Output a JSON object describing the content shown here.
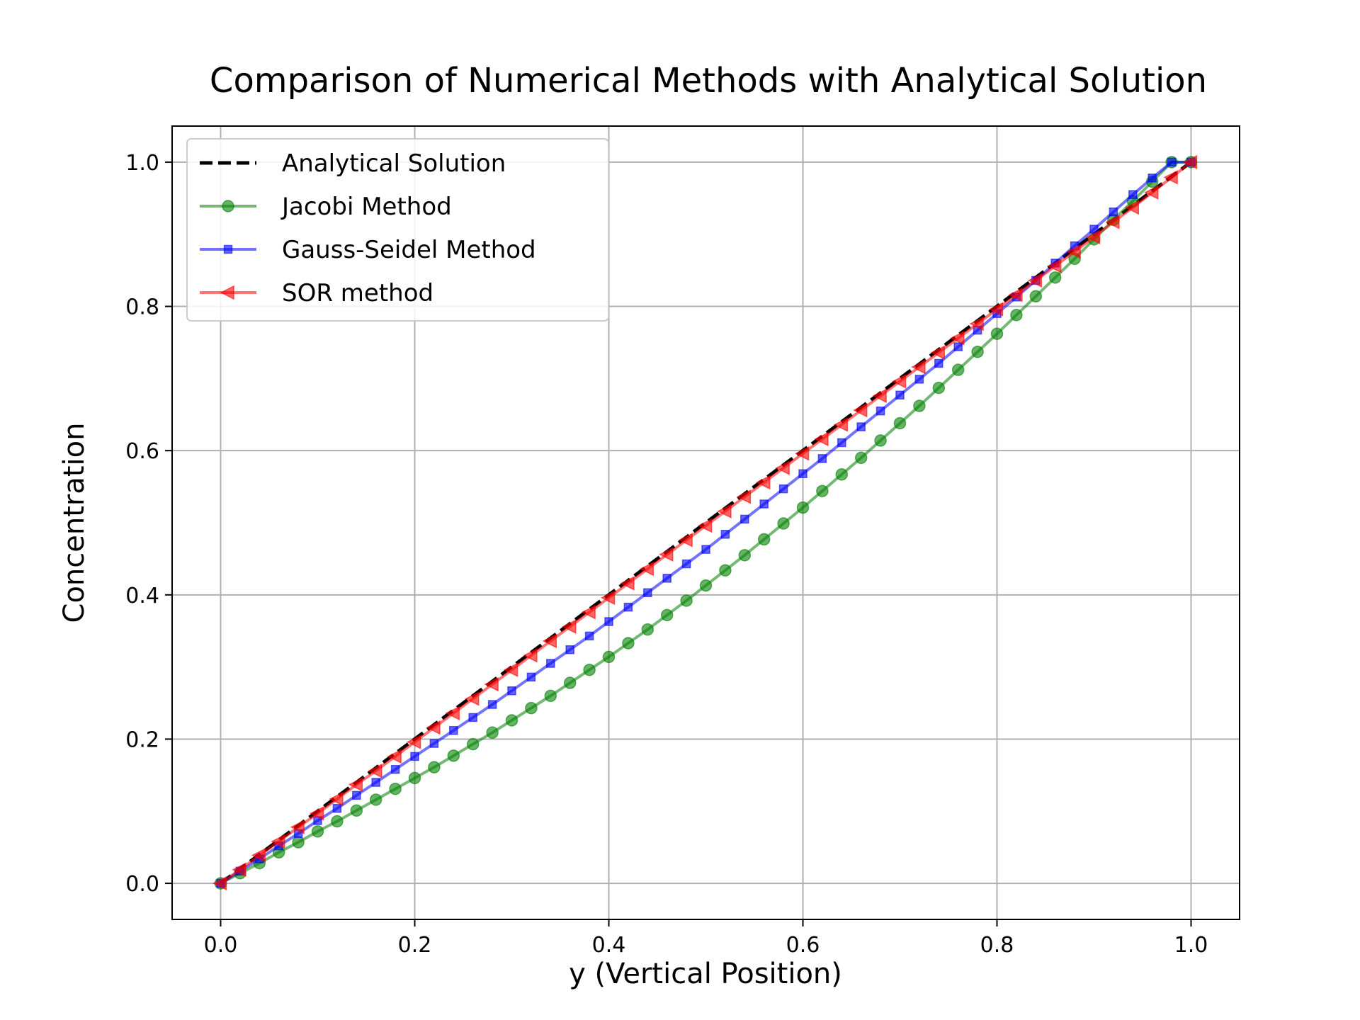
{
  "chart_data": {
    "type": "line",
    "title": "Comparison of Numerical Methods with Analytical Solution",
    "xlabel": "y (Vertical Position)",
    "ylabel": "Concentration",
    "xlim": [
      -0.05,
      1.05
    ],
    "ylim": [
      -0.05,
      1.05
    ],
    "xticks": [
      "0.0",
      "0.2",
      "0.4",
      "0.6",
      "0.8",
      "1.0"
    ],
    "yticks": [
      "0.0",
      "0.2",
      "0.4",
      "0.6",
      "0.8",
      "1.0"
    ],
    "grid": true,
    "legend_position": "top-left",
    "points": 51,
    "series": [
      {
        "name": "Analytical Solution",
        "color": "#000000",
        "style": "dashed",
        "marker": "none",
        "x": [
          0.0,
          1.0
        ],
        "y": [
          0.0,
          1.0
        ]
      },
      {
        "name": "Jacobi Method",
        "color": "#008000",
        "style": "solid",
        "marker": "circle",
        "x": [
          0.0,
          0.02,
          0.04,
          0.06,
          0.08,
          0.1,
          0.12,
          0.14,
          0.16,
          0.18,
          0.2,
          0.22,
          0.24,
          0.26,
          0.28,
          0.3,
          0.32,
          0.34,
          0.36,
          0.38,
          0.4,
          0.42,
          0.44,
          0.46,
          0.48,
          0.5,
          0.52,
          0.54,
          0.56,
          0.58,
          0.6,
          0.62,
          0.64,
          0.66,
          0.68,
          0.7,
          0.72,
          0.74,
          0.76,
          0.78,
          0.8,
          0.82,
          0.84,
          0.86,
          0.88,
          0.9,
          0.92,
          0.94,
          0.96,
          0.98,
          1.0
        ],
        "y": [
          0.0,
          0.014,
          0.028,
          0.043,
          0.057,
          0.072,
          0.086,
          0.101,
          0.116,
          0.131,
          0.146,
          0.161,
          0.177,
          0.193,
          0.209,
          0.226,
          0.243,
          0.26,
          0.278,
          0.296,
          0.314,
          0.333,
          0.352,
          0.372,
          0.392,
          0.413,
          0.434,
          0.455,
          0.477,
          0.499,
          0.521,
          0.544,
          0.567,
          0.59,
          0.614,
          0.638,
          0.662,
          0.687,
          0.712,
          0.737,
          0.762,
          0.788,
          0.814,
          0.84,
          0.866,
          0.893,
          0.92,
          0.946,
          0.973,
          1.0,
          1.0
        ]
      },
      {
        "name": "Gauss-Seidel Method",
        "color": "#0000ff",
        "style": "solid",
        "marker": "square",
        "x": [
          0.0,
          0.02,
          0.04,
          0.06,
          0.08,
          0.1,
          0.12,
          0.14,
          0.16,
          0.18,
          0.2,
          0.22,
          0.24,
          0.26,
          0.28,
          0.3,
          0.32,
          0.34,
          0.36,
          0.38,
          0.4,
          0.42,
          0.44,
          0.46,
          0.48,
          0.5,
          0.52,
          0.54,
          0.56,
          0.58,
          0.6,
          0.62,
          0.64,
          0.66,
          0.68,
          0.7,
          0.72,
          0.74,
          0.76,
          0.78,
          0.8,
          0.82,
          0.84,
          0.86,
          0.88,
          0.9,
          0.92,
          0.94,
          0.96,
          0.98,
          1.0
        ],
        "y": [
          0.0,
          0.017,
          0.034,
          0.052,
          0.069,
          0.087,
          0.104,
          0.122,
          0.14,
          0.158,
          0.176,
          0.194,
          0.212,
          0.23,
          0.248,
          0.267,
          0.286,
          0.305,
          0.324,
          0.343,
          0.363,
          0.383,
          0.403,
          0.423,
          0.443,
          0.463,
          0.484,
          0.505,
          0.526,
          0.547,
          0.568,
          0.589,
          0.611,
          0.633,
          0.655,
          0.677,
          0.699,
          0.721,
          0.744,
          0.767,
          0.79,
          0.813,
          0.836,
          0.86,
          0.884,
          0.907,
          0.931,
          0.955,
          0.978,
          1.0,
          1.0
        ]
      },
      {
        "name": "SOR method",
        "color": "#ff0000",
        "style": "solid",
        "marker": "triangle-left",
        "x": [
          0.0,
          0.02,
          0.04,
          0.06,
          0.08,
          0.1,
          0.12,
          0.14,
          0.16,
          0.18,
          0.2,
          0.22,
          0.24,
          0.26,
          0.28,
          0.3,
          0.32,
          0.34,
          0.36,
          0.38,
          0.4,
          0.42,
          0.44,
          0.46,
          0.48,
          0.5,
          0.52,
          0.54,
          0.56,
          0.58,
          0.6,
          0.62,
          0.64,
          0.66,
          0.68,
          0.7,
          0.72,
          0.74,
          0.76,
          0.78,
          0.8,
          0.82,
          0.84,
          0.86,
          0.88,
          0.9,
          0.92,
          0.94,
          0.96,
          0.98,
          1.0
        ],
        "y": [
          0.0,
          0.019,
          0.039,
          0.058,
          0.078,
          0.097,
          0.117,
          0.137,
          0.156,
          0.176,
          0.196,
          0.216,
          0.236,
          0.256,
          0.276,
          0.296,
          0.316,
          0.336,
          0.356,
          0.376,
          0.396,
          0.416,
          0.436,
          0.456,
          0.476,
          0.496,
          0.516,
          0.536,
          0.556,
          0.576,
          0.596,
          0.616,
          0.636,
          0.656,
          0.676,
          0.696,
          0.716,
          0.736,
          0.756,
          0.776,
          0.796,
          0.816,
          0.836,
          0.856,
          0.876,
          0.896,
          0.917,
          0.937,
          0.958,
          0.979,
          1.0
        ]
      }
    ]
  }
}
